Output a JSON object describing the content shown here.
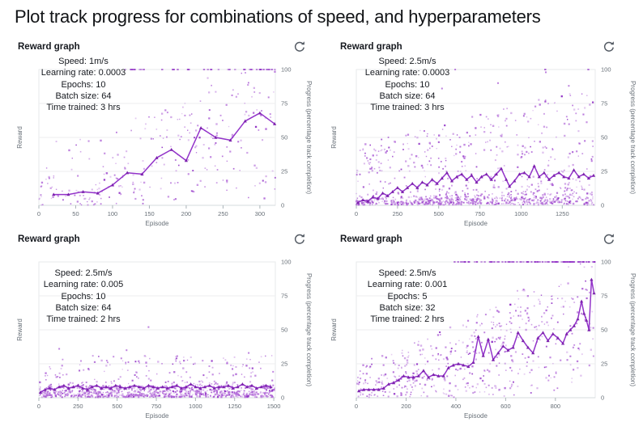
{
  "title": "Plot track progress for combinations of speed, and hyperparameters",
  "colors": {
    "line": "#9233c9",
    "marker": "#7d22ae",
    "scatter": "#b168d8",
    "scatter_dark": "#8e2cc4",
    "grid": "#eceeef",
    "axis_line": "#d5dbdd",
    "tick_mark": "#aab4b8",
    "plot_border": "#e7eaeb",
    "icon": "#545b64",
    "text": "#16191f"
  },
  "chart_data": [
    {
      "type": "scatter",
      "title": "Reward graph",
      "xlabel": "Episode",
      "ylabel": "Reward",
      "y2label": "Progress (percentage track completion)",
      "xlim": [
        0,
        321
      ],
      "ylim": [
        0,
        100
      ],
      "xticks": [
        0,
        50,
        100,
        150,
        200,
        250,
        300
      ],
      "yticks": [
        0,
        25,
        50,
        75,
        100
      ],
      "grid": "horizontal",
      "legend": "none",
      "annotations": [
        "Speed: 1m/s",
        "Learning rate: 0.0003",
        "Epochs: 10",
        "Batch size: 64",
        "Time trained: 3 hrs"
      ],
      "line": [
        [
          20,
          8
        ],
        [
          40,
          8
        ],
        [
          60,
          10
        ],
        [
          80,
          9
        ],
        [
          100,
          15
        ],
        [
          120,
          24
        ],
        [
          140,
          23
        ],
        [
          160,
          35
        ],
        [
          180,
          41
        ],
        [
          200,
          33
        ],
        [
          220,
          57
        ],
        [
          240,
          50
        ],
        [
          260,
          48
        ],
        [
          280,
          62
        ],
        [
          300,
          68
        ],
        [
          320,
          60
        ]
      ],
      "scatter": {
        "seed": 7,
        "count": 270,
        "components": [
          {
            "kind": "line",
            "weight": 0.5,
            "mul_lo": 0.2,
            "mul_hi": 1.7,
            "gauss": 9
          },
          {
            "kind": "uni",
            "weight": 0.5,
            "lo": 1,
            "hi": 96,
            "grow": 0.45
          }
        ]
      },
      "top_row": {
        "count": 40,
        "start_frac": 0.36,
        "right_bias": 1.2
      },
      "extra_points": []
    },
    {
      "type": "scatter",
      "title": "Reward graph",
      "xlabel": "Episode",
      "ylabel": "Reward",
      "y2label": "Progress (percentage track completion)",
      "xlim": [
        0,
        1450
      ],
      "ylim": [
        0,
        100
      ],
      "xticks": [
        0,
        250,
        500,
        750,
        1000,
        1250
      ],
      "yticks": [
        0,
        25,
        50,
        75,
        100
      ],
      "grid": "horizontal",
      "legend": "none",
      "annotations": [
        "Speed: 2.5m/s",
        "Learning rate: 0.0003",
        "Epochs: 10",
        "Batch size: 64",
        "Time trained: 3 hrs"
      ],
      "line": [
        [
          10,
          2
        ],
        [
          40,
          4
        ],
        [
          70,
          3
        ],
        [
          100,
          6
        ],
        [
          130,
          5
        ],
        [
          160,
          9
        ],
        [
          190,
          7
        ],
        [
          220,
          10
        ],
        [
          250,
          13
        ],
        [
          280,
          10
        ],
        [
          310,
          13
        ],
        [
          340,
          16
        ],
        [
          370,
          13
        ],
        [
          400,
          17
        ],
        [
          430,
          15
        ],
        [
          460,
          19
        ],
        [
          490,
          16
        ],
        [
          520,
          20
        ],
        [
          550,
          24
        ],
        [
          580,
          18
        ],
        [
          610,
          21
        ],
        [
          640,
          23
        ],
        [
          670,
          19
        ],
        [
          700,
          22
        ],
        [
          730,
          17
        ],
        [
          760,
          21
        ],
        [
          790,
          23
        ],
        [
          820,
          19
        ],
        [
          850,
          23
        ],
        [
          880,
          27
        ],
        [
          910,
          19
        ],
        [
          930,
          14
        ],
        [
          960,
          18
        ],
        [
          990,
          23
        ],
        [
          1020,
          24
        ],
        [
          1050,
          21
        ],
        [
          1080,
          29
        ],
        [
          1110,
          21
        ],
        [
          1140,
          24
        ],
        [
          1170,
          19
        ],
        [
          1200,
          22
        ],
        [
          1230,
          24
        ],
        [
          1260,
          21
        ],
        [
          1290,
          20
        ],
        [
          1320,
          26
        ],
        [
          1350,
          21
        ],
        [
          1380,
          23
        ],
        [
          1410,
          20
        ],
        [
          1440,
          22
        ]
      ],
      "scatter": {
        "seed": 21,
        "count": 1000,
        "components": [
          {
            "kind": "hn",
            "weight": 0.62,
            "scale": 12,
            "grow": 0.45
          },
          {
            "kind": "uni",
            "weight": 0.38,
            "lo": 1,
            "hi": 88,
            "grow": 0.5
          }
        ]
      },
      "top_row": {
        "count": 2,
        "start_frac": 0.4,
        "right_bias": 1
      },
      "extra_points": [
        [
          600,
          100
        ],
        [
          1150,
          98
        ],
        [
          520,
          86
        ],
        [
          860,
          90
        ],
        [
          1290,
          88
        ]
      ]
    },
    {
      "type": "scatter",
      "title": "Reward graph",
      "xlabel": "Episode",
      "ylabel": "Reward",
      "y2label": "Progress (percentage track completion)",
      "xlim": [
        0,
        1510
      ],
      "ylim": [
        0,
        100
      ],
      "xticks": [
        0,
        250,
        500,
        750,
        1000,
        1250,
        1500
      ],
      "yticks": [
        0,
        25,
        50,
        75,
        100
      ],
      "grid": "horizontal",
      "legend": "none",
      "annotations": [
        "Speed: 2.5m/s",
        "Learning rate: 0.005",
        "Epochs: 10",
        "Batch size: 64",
        "Time trained: 2 hrs"
      ],
      "line": [
        [
          10,
          4
        ],
        [
          40,
          6
        ],
        [
          70,
          7
        ],
        [
          100,
          6
        ],
        [
          130,
          8
        ],
        [
          160,
          9
        ],
        [
          190,
          7
        ],
        [
          220,
          8
        ],
        [
          250,
          9
        ],
        [
          280,
          7
        ],
        [
          310,
          6
        ],
        [
          340,
          8
        ],
        [
          370,
          9
        ],
        [
          400,
          7
        ],
        [
          430,
          8
        ],
        [
          460,
          7
        ],
        [
          490,
          9
        ],
        [
          520,
          8
        ],
        [
          550,
          7
        ],
        [
          580,
          8
        ],
        [
          610,
          9
        ],
        [
          640,
          8
        ],
        [
          670,
          7
        ],
        [
          700,
          9
        ],
        [
          730,
          8
        ],
        [
          760,
          7
        ],
        [
          790,
          8
        ],
        [
          820,
          7
        ],
        [
          850,
          8
        ],
        [
          880,
          9
        ],
        [
          910,
          7
        ],
        [
          940,
          8
        ],
        [
          970,
          10
        ],
        [
          1000,
          8
        ],
        [
          1030,
          7
        ],
        [
          1060,
          8
        ],
        [
          1090,
          9
        ],
        [
          1120,
          7
        ],
        [
          1150,
          8
        ],
        [
          1180,
          8
        ],
        [
          1210,
          9
        ],
        [
          1240,
          7
        ],
        [
          1270,
          8
        ],
        [
          1300,
          10
        ],
        [
          1330,
          8
        ],
        [
          1360,
          9
        ],
        [
          1390,
          7
        ],
        [
          1420,
          8
        ],
        [
          1450,
          9
        ],
        [
          1480,
          8
        ]
      ],
      "scatter": {
        "seed": 33,
        "count": 1000,
        "components": [
          {
            "kind": "hn",
            "weight": 0.8,
            "scale": 8,
            "grow": 1
          },
          {
            "kind": "uni",
            "weight": 0.2,
            "lo": 1,
            "hi": 31,
            "grow": 1
          }
        ]
      },
      "top_row": {
        "count": 0,
        "start_frac": 0,
        "right_bias": 1
      },
      "extra_points": [
        [
          700,
          52
        ],
        [
          560,
          35
        ],
        [
          1340,
          33
        ],
        [
          130,
          36
        ]
      ]
    },
    {
      "type": "scatter",
      "title": "Reward graph",
      "xlabel": "Episode",
      "ylabel": "Reward",
      "y2label": "Progress (percentage track completion)",
      "xlim": [
        0,
        960
      ],
      "ylim": [
        0,
        100
      ],
      "xticks": [
        0,
        200,
        400,
        600,
        800
      ],
      "yticks": [
        0,
        25,
        50,
        75,
        100
      ],
      "grid": "horizontal",
      "legend": "none",
      "annotations": [
        "Speed: 2.5m/s",
        "Learning rate: 0.001",
        "Epochs: 5",
        "Batch size: 32",
        "Time trained: 2 hrs"
      ],
      "line": [
        [
          10,
          5
        ],
        [
          30,
          6
        ],
        [
          50,
          6
        ],
        [
          70,
          6
        ],
        [
          90,
          6
        ],
        [
          110,
          7
        ],
        [
          130,
          10
        ],
        [
          150,
          11
        ],
        [
          170,
          13
        ],
        [
          190,
          16
        ],
        [
          210,
          15
        ],
        [
          230,
          15
        ],
        [
          250,
          16
        ],
        [
          270,
          20
        ],
        [
          290,
          15
        ],
        [
          310,
          17
        ],
        [
          330,
          16
        ],
        [
          350,
          16
        ],
        [
          370,
          22
        ],
        [
          390,
          24
        ],
        [
          410,
          25
        ],
        [
          430,
          24
        ],
        [
          450,
          23
        ],
        [
          470,
          26
        ],
        [
          490,
          45
        ],
        [
          510,
          31
        ],
        [
          530,
          43
        ],
        [
          550,
          28
        ],
        [
          570,
          33
        ],
        [
          590,
          38
        ],
        [
          610,
          35
        ],
        [
          630,
          37
        ],
        [
          650,
          48
        ],
        [
          670,
          42
        ],
        [
          690,
          37
        ],
        [
          710,
          33
        ],
        [
          730,
          44
        ],
        [
          750,
          48
        ],
        [
          770,
          42
        ],
        [
          790,
          47
        ],
        [
          810,
          44
        ],
        [
          830,
          40
        ],
        [
          845,
          47
        ],
        [
          860,
          50
        ],
        [
          875,
          53
        ],
        [
          890,
          58
        ],
        [
          905,
          71
        ],
        [
          915,
          62
        ],
        [
          925,
          57
        ],
        [
          935,
          50
        ],
        [
          945,
          87
        ],
        [
          955,
          77
        ]
      ],
      "scatter": {
        "seed": 55,
        "count": 520,
        "components": [
          {
            "kind": "line",
            "weight": 0.55,
            "mul_lo": 0.25,
            "mul_hi": 1.8,
            "gauss": 12
          },
          {
            "kind": "uni",
            "weight": 0.45,
            "lo": 1,
            "hi": 97,
            "grow": 0.25
          }
        ]
      },
      "top_row": {
        "count": 95,
        "start_frac": 0.36,
        "right_bias": 1.7
      },
      "extra_points": []
    }
  ]
}
